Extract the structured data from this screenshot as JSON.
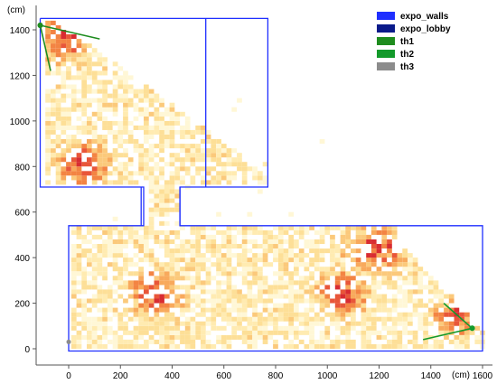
{
  "chart_data": {
    "type": "heatmap",
    "title": "",
    "xlabel": "(cm)",
    "ylabel": "(cm)",
    "x_ticks": [
      0,
      200,
      400,
      600,
      800,
      1000,
      1200,
      1400,
      1600
    ],
    "x_tick_labels": [
      "0",
      "200",
      "400",
      "600",
      "800",
      "1000",
      "1200",
      "1400",
      "1600"
    ],
    "y_ticks": [
      0,
      200,
      400,
      600,
      800,
      1000,
      1200,
      1400
    ],
    "y_tick_labels": [
      "0",
      "200",
      "400",
      "600",
      "800",
      "1000",
      "1200",
      "1400"
    ],
    "xlim": [
      -120,
      1610
    ],
    "ylim": [
      -60,
      1480
    ],
    "colors": {
      "expo_walls": "#1f2fff",
      "expo_lobby": "#0a1a8a",
      "th1": "#1e8c1e",
      "th2": "#139a2b",
      "th3": "#8c8c8c",
      "heat_low": "#fff4c2",
      "heat_mid": "#f7a04a",
      "heat_high": "#d4151c"
    },
    "legend": {
      "position": "top-right",
      "entries": [
        {
          "name": "expo_walls",
          "color": "#1f2fff"
        },
        {
          "name": "expo_lobby",
          "color": "#0a1a8a"
        },
        {
          "name": "th1",
          "color": "#1e8c1e"
        },
        {
          "name": "th2",
          "color": "#139a2b"
        },
        {
          "name": "th3",
          "color": "#8c8c8c"
        }
      ]
    },
    "walls": [
      {
        "name": "expo_walls",
        "points": [
          [
            -110,
            1450
          ],
          [
            770,
            1450
          ],
          [
            770,
            710
          ],
          [
            440,
            710
          ],
          [
            430,
            710
          ],
          [
            430,
            540
          ],
          [
            1600,
            540
          ],
          [
            1600,
            -10
          ],
          [
            0,
            -10
          ],
          [
            0,
            540
          ],
          [
            280,
            540
          ],
          [
            290,
            540
          ],
          [
            290,
            710
          ],
          [
            -110,
            710
          ],
          [
            -110,
            1450
          ]
        ]
      },
      {
        "name": "expo_walls",
        "points": [
          [
            530,
            1450
          ],
          [
            530,
            710
          ]
        ]
      },
      {
        "name": "expo_walls",
        "points": [
          [
            280,
            710
          ],
          [
            280,
            540
          ]
        ]
      },
      {
        "name": "expo_walls",
        "points": [
          [
            430,
            710
          ],
          [
            430,
            540
          ]
        ]
      }
    ],
    "trajectories": [
      {
        "name": "th1",
        "points": [
          [
            -110,
            1420
          ],
          [
            120,
            1360
          ]
        ]
      },
      {
        "name": "th1",
        "points": [
          [
            -110,
            1420
          ],
          [
            -70,
            1220
          ]
        ]
      },
      {
        "name": "th2",
        "points": [
          [
            1560,
            90
          ],
          [
            1450,
            200
          ]
        ]
      },
      {
        "name": "th2",
        "points": [
          [
            1560,
            90
          ],
          [
            1370,
            40
          ]
        ]
      },
      {
        "name": "th3",
        "points": [
          [
            0,
            30
          ]
        ]
      }
    ],
    "heat_cells": {
      "cell_size_cm": 20,
      "seed": 17
    }
  }
}
